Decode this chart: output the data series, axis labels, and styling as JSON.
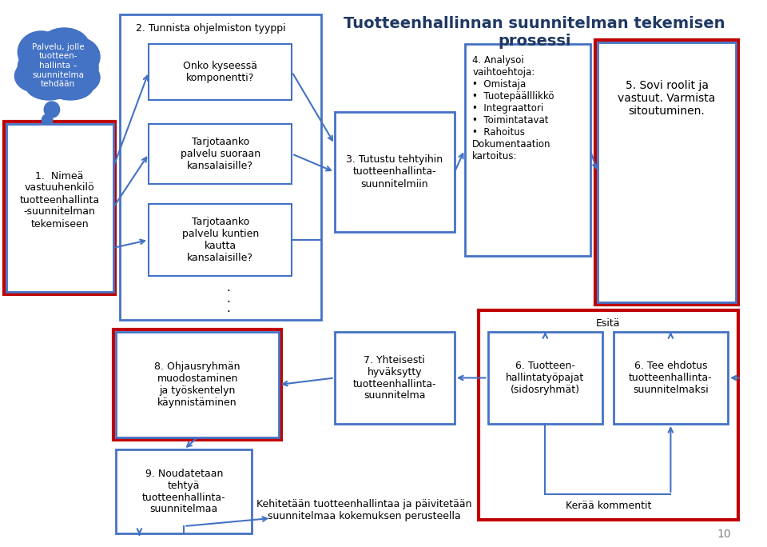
{
  "title": "Tuotteenhallinnan suunnitelman tekemisen\nprosessi",
  "title_color": "#1F3864",
  "bg_color": "#FFFFFF",
  "cloud_text": "Palvelu, jolle\ntuotteen-\nhallinta –\nsuunnitelma\ntehdään",
  "cloud_color": "#4472C4",
  "box1_text": "1.  Nimeä\nvastuuhenkilö\ntuotteenhallinta\n-suunnitelman\ntekemiseen",
  "box2_header": "2. Tunnista ohjelmiston tyyppi",
  "box2a_text": "Onko kyseessä\nkomponentti?",
  "box2b_text": "Tarjotaanko\npalvelu suoraan\nkansalaisille?",
  "box2c_text": "Tarjotaanko\npalvelu kuntien\nkautta\nkansalaisille?",
  "box3_text": "3. Tutustu tehtyihin\ntuotteenhallinta-\nsuunnitelmiin",
  "box4_text": "4. Analysoi\nvaihtoehtoja:\n•  Omistaja\n•  Tuotepäälllikkö\n•  Integraattori\n•  Toimintatavat\n•  Rahoitus\nDokumentaation\nkartoitus:",
  "box5_text": "5. Sovi roolit ja\nvastuut. Varmista\nsitoutuminen.",
  "box6a_text": "6. Tuotteen-\nhallintatyöpajat\n(sidosryhmät)",
  "box6b_text": "6. Tee ehdotus\ntuotteenhallinta-\nsuunnitelmaksi",
  "box7_text": "7. Yhteisesti\nhyväksytty\ntuotteenhallinta-\nsuunnitelma",
  "box8_text": "8. Ohjausryhmän\nmuodostaminen\nja työskentelyn\nkäynnistäminen",
  "box9_text": "9. Noudatetaan\ntehtyä\ntuotteenhallinta-\nsuunnitelmaa",
  "esita_text": "Esitä",
  "keraa_text": "Kerää kommentit",
  "bottom_text": "Kehitetään tuotteenhallintaa ja päivitetään\nsuunnitelmaa kokemuksen perusteella",
  "page_num": "10",
  "blue": "#4472C4",
  "red": "#C00000",
  "dark_blue": "#1F3864",
  "white": "#FFFFFF"
}
